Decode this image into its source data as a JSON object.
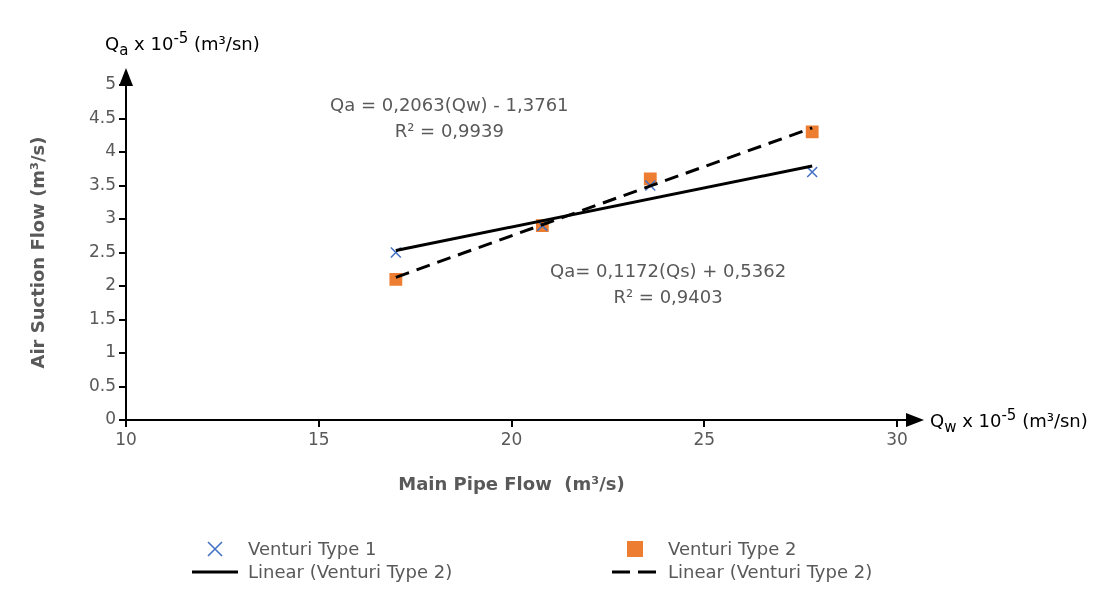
{
  "chart_data": {
    "type": "scatter",
    "xlabel": "Main Pipe Flow  (m³/s)",
    "ylabel": "Air Suction Flow (m³/s)",
    "annotations": [
      "Q$_{a}$ x 10$^{-5}$ (m³/sn)",
      "Q$_{w}$ x 10$^{-5}$ (m³/sn)",
      "Qa = 0,2063(Qw) - 1,3761\nR² = 0,9939",
      "Qa= 0,1172(Qs) + 0,5362\nR² = 0,9403"
    ],
    "xlim": [
      10,
      30
    ],
    "xticks": [
      10,
      15,
      20,
      25,
      30
    ],
    "ylim": [
      0,
      5
    ],
    "yticks": [
      0,
      0.5,
      1,
      1.5,
      2,
      2.5,
      3,
      3.5,
      4,
      4.5,
      5
    ],
    "legend": "bottom",
    "series": [
      {
        "name": "Venturi Type 1",
        "marker": "cross",
        "color": "#4472c4",
        "x": [
          17,
          20.8,
          23.6,
          27.8
        ],
        "values": [
          2.5,
          2.9,
          3.5,
          3.7
        ]
      },
      {
        "name": "Venturi Type 2",
        "marker": "square",
        "color": "#ed7d31",
        "x": [
          17,
          20.8,
          23.6,
          27.8
        ],
        "values": [
          2.1,
          2.9,
          3.6,
          4.3
        ]
      },
      {
        "name": "Linear (Venturi Type 2)",
        "type": "line",
        "marker": "none",
        "line_style": "solid",
        "color": "#000000",
        "x": [
          17,
          27.8
        ],
        "values": [
          2.53,
          3.79
        ]
      },
      {
        "name": "Linear (Venturi Type 2)",
        "type": "line",
        "marker": "none",
        "line_style": "dashed",
        "color": "#000000",
        "x": [
          17,
          27.8
        ],
        "values": [
          2.13,
          4.36
        ]
      }
    ]
  }
}
